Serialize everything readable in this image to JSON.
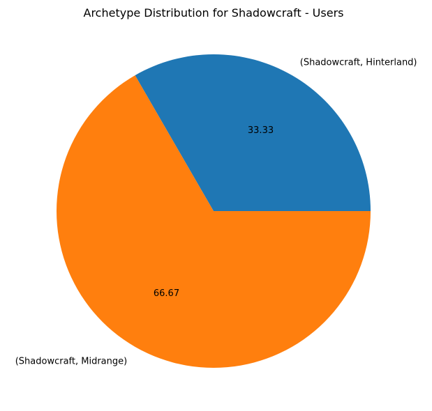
{
  "chart_data": {
    "type": "pie",
    "title": "Archetype Distribution for Shadowcraft - Users",
    "labels": [
      "(Shadowcraft, Hinterland)",
      "(Shadowcraft, Midrange)"
    ],
    "values": [
      33.33,
      66.67
    ],
    "value_labels": [
      "33.33",
      "66.67"
    ],
    "colors": [
      "#1f77b4",
      "#ff7f0e"
    ],
    "start_angle_deg": 0,
    "direction": "counterclockwise"
  }
}
